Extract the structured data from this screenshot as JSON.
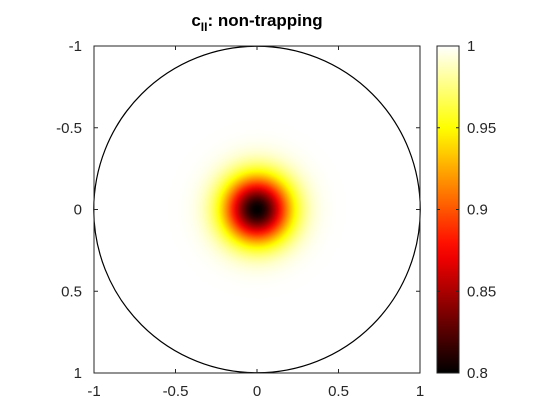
{
  "chart_data": {
    "type": "heatmap",
    "title": {
      "main": "c",
      "subscript": "II",
      "rest": ": non-trapping"
    },
    "xlabel": "",
    "ylabel": "",
    "xlim": [
      -1,
      1
    ],
    "ylim": [
      -1,
      1
    ],
    "y_direction": "reversed",
    "xticks": [
      -1,
      -0.5,
      0,
      0.5,
      1
    ],
    "xtick_labels": [
      "-1",
      "-0.5",
      "0",
      "0.5",
      "1"
    ],
    "yticks": [
      -1,
      -0.5,
      0,
      0.5,
      1
    ],
    "ytick_labels": [
      "-1",
      "-0.5",
      "0",
      "0.5",
      "1"
    ],
    "domain_boundary": {
      "shape": "circle",
      "center": [
        0,
        0
      ],
      "radius": 1
    },
    "field": {
      "background_value": 1.0,
      "minimum_value": 0.8,
      "minimum_location": [
        0,
        0
      ],
      "profile": "gaussian",
      "decay_width": 0.2
    },
    "colormap": "hot",
    "colorbar": {
      "range": [
        0.8,
        1
      ],
      "ticks": [
        0.8,
        0.85,
        0.9,
        0.95,
        1
      ],
      "tick_labels": [
        "0.8",
        "0.85",
        "0.9",
        "0.95",
        "1"
      ],
      "position": "right"
    },
    "grid": false
  }
}
